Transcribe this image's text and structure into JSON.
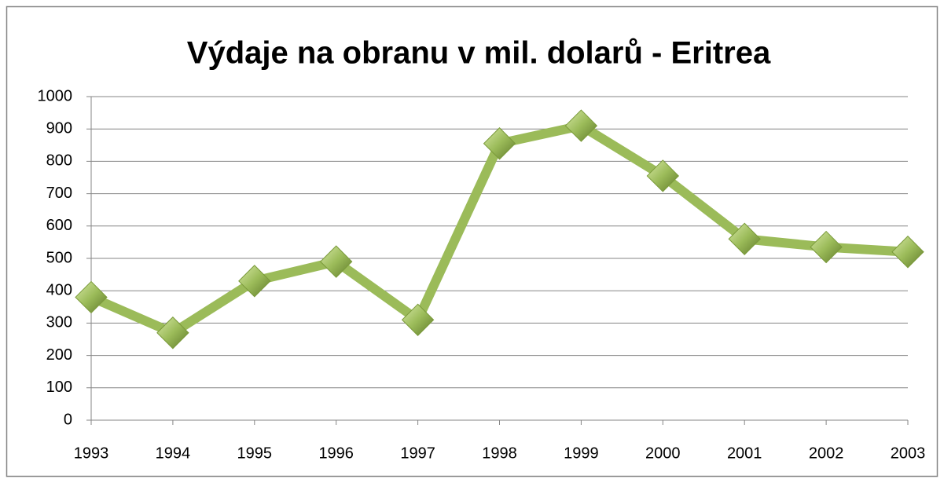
{
  "chart_data": {
    "type": "line",
    "title": "Výdaje na obranu v mil. dolarů - Eritrea",
    "categories": [
      "1993",
      "1994",
      "1995",
      "1996",
      "1997",
      "1998",
      "1999",
      "2000",
      "2001",
      "2002",
      "2003"
    ],
    "values": [
      380,
      270,
      430,
      490,
      310,
      855,
      910,
      755,
      560,
      535,
      520
    ],
    "color": "#9bbb59",
    "ylim": [
      0,
      1000
    ],
    "yticks": [
      0,
      100,
      200,
      300,
      400,
      500,
      600,
      700,
      800,
      900,
      1000
    ],
    "grid": true
  }
}
